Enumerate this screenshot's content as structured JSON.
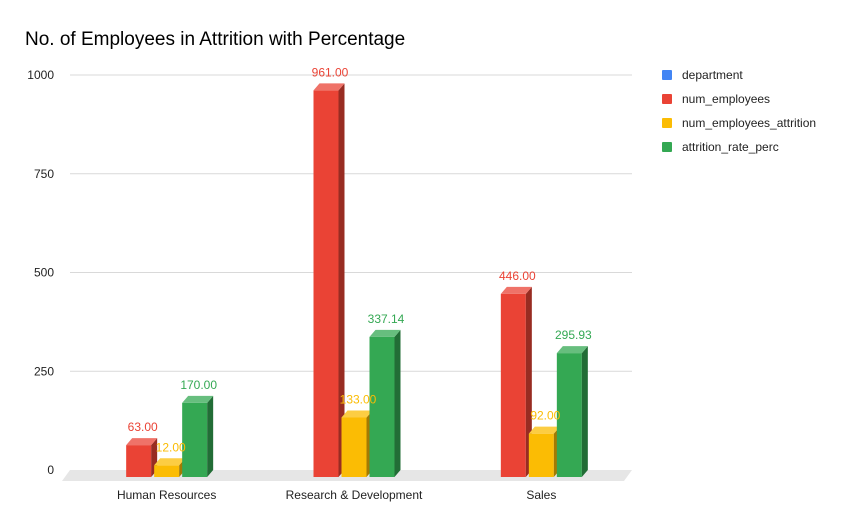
{
  "chart_data": {
    "type": "bar",
    "title": "No. of Employees in Attrition with Percentage",
    "xlabel": "",
    "ylabel": "",
    "categories": [
      "Human Resources",
      "Research & Development",
      "Sales"
    ],
    "ylim": [
      0,
      1000
    ],
    "yticks": [
      "0",
      "250",
      "500",
      "750",
      "1000"
    ],
    "grid": true,
    "legend_position": "right",
    "legend": [
      "department",
      "num_employees",
      "num_employees_attrition",
      "attrition_rate_perc"
    ],
    "legend_colors": [
      "#4285f4",
      "#ea4335",
      "#fbbc04",
      "#34a853"
    ],
    "series": [
      {
        "name": "num_employees",
        "color": "#ea4335",
        "values": [
          63,
          961,
          446
        ],
        "labels": [
          "63.00",
          "961.00",
          "446.00"
        ]
      },
      {
        "name": "num_employees_attrition",
        "color": "#fbbc04",
        "values": [
          12,
          133,
          92
        ],
        "labels": [
          "12.00",
          "133.00",
          "92.00"
        ]
      },
      {
        "name": "attrition_rate_perc",
        "color": "#34a853",
        "values": [
          170,
          337.14,
          295.93
        ],
        "labels": [
          "170.00",
          "337.14",
          "295.93"
        ]
      }
    ]
  }
}
